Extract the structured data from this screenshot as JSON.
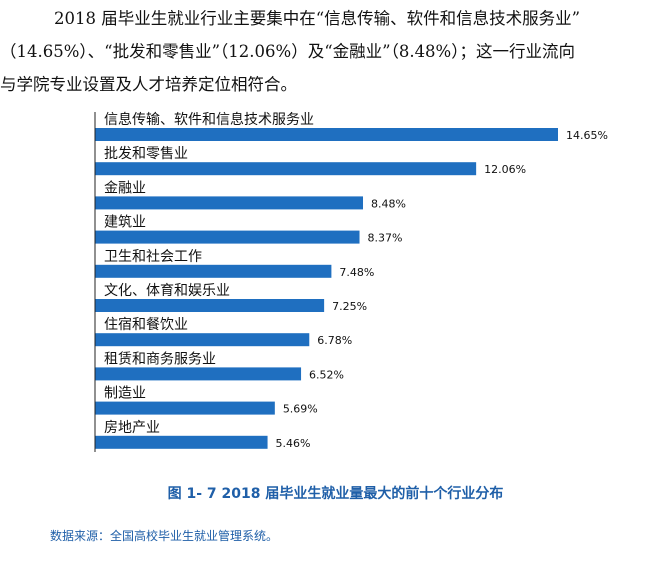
{
  "paragraph": {
    "line1": "2018 届毕业生就业行业主要集中在“信息传输、软件和信息技术服务业”",
    "line2": "（14.65%）、“批发和零售业”（12.06%）及“金融业”（8.48%）；这一行业流向",
    "line3": "与学院专业设置及人才培养定位相符合。"
  },
  "colors": {
    "bar": "#1f6fc0",
    "axis": "#222222",
    "caption": "#1f5fa8"
  },
  "chart_data": {
    "type": "bar",
    "orientation": "horizontal",
    "categories": [
      "信息传输、软件和信息技术服务业",
      "批发和零售业",
      "金融业",
      "建筑业",
      "卫生和社会工作",
      "文化、体育和娱乐业",
      "住宿和餐饮业",
      "租赁和商务服务业",
      "制造业",
      "房地产业"
    ],
    "values": [
      14.65,
      12.06,
      8.48,
      8.37,
      7.48,
      7.25,
      6.78,
      6.52,
      5.69,
      5.46
    ],
    "value_labels": [
      "14.65%",
      "12.06%",
      "8.48%",
      "8.37%",
      "7.48%",
      "7.25%",
      "6.78%",
      "6.52%",
      "5.69%",
      "5.46%"
    ],
    "unit": "%",
    "xlim": [
      0,
      14.65
    ],
    "title": "图 1- 7    2018 届毕业生就业量最大的前十个行业分布",
    "source": "数据来源：全国高校毕业生就业管理系统。"
  }
}
